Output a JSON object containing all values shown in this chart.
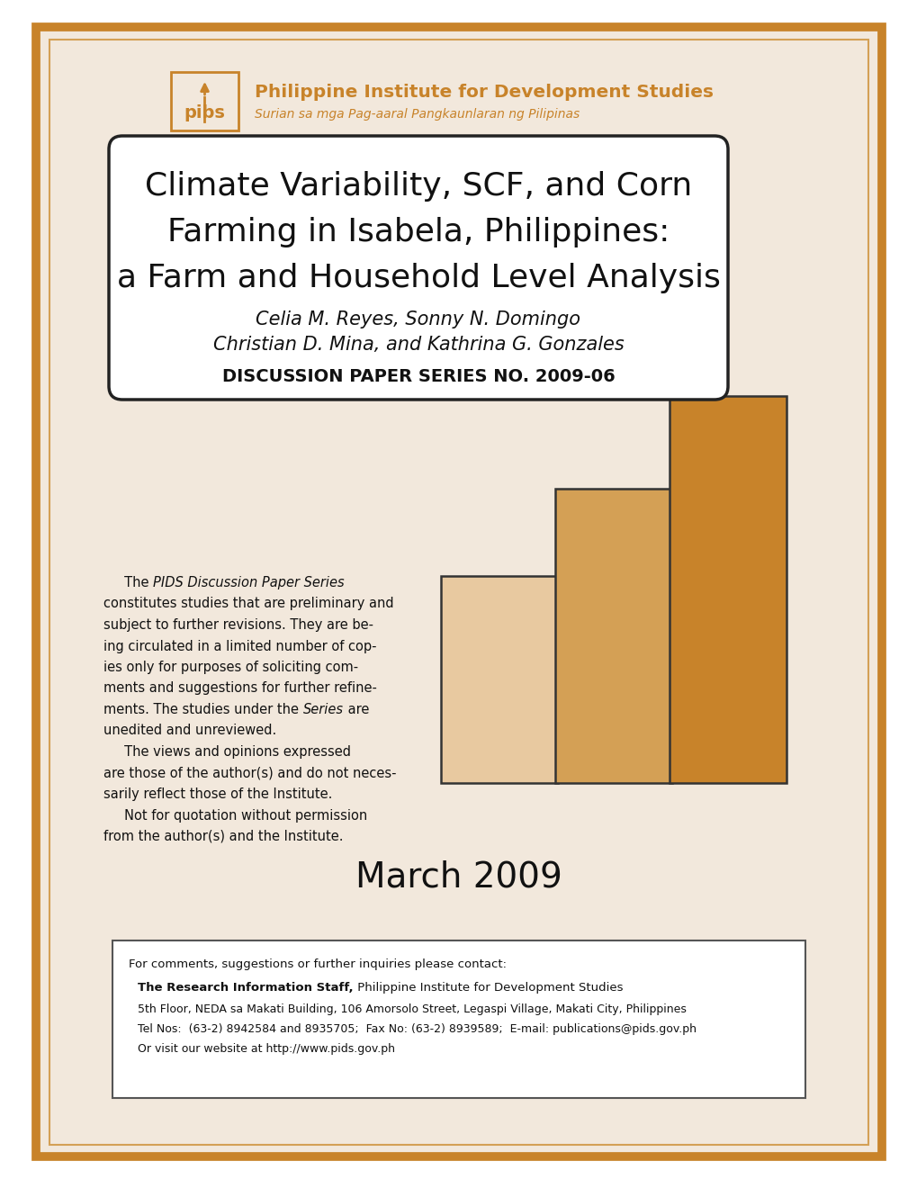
{
  "bg_color": "#f2e8dc",
  "outer_border_color": "#c8832a",
  "inner_border_color": "#d4a055",
  "page_bg": "#ffffff",
  "logo_color": "#c8832a",
  "institute_name": "Philippine Institute for Development Studies",
  "institute_tagline": "Surian sa mga Pag-aaral Pangkaunlaran ng Pilipinas",
  "title_line1": "Climate Variability, SCF, and Corn",
  "title_line2": "Farming in Isabela, Philippines:",
  "title_line3": "a Farm and Household Level Analysis",
  "author_line1": "Celia M. Reyes, Sonny N. Domingo",
  "author_line2": "Christian D. Mina, and Kathrina G. Gonzales",
  "series_label": "DISCUSSION PAPER SERIES NO. 2009-06",
  "date_label": "March 2009",
  "contact_line1": "For comments, suggestions or further inquiries please contact:",
  "contact_bold": "The Research Information Staff,",
  "contact_after_bold": " Philippine Institute for Development Studies",
  "contact_line3": "5th Floor, NEDA sa Makati Building, 106 Amorsolo Street, Legaspi Village, Makati City, Philippines",
  "contact_line4": "Tel Nos:  (63-2) 8942584 and 8935705;  Fax No: (63-2) 8939589;  E-mail: publications@pids.gov.ph",
  "contact_line5": "Or visit our website at http://www.pids.gov.ph",
  "bar_colors": [
    "#e8c9a0",
    "#c8832a",
    "#d4a055"
  ],
  "body_color": "#111111"
}
